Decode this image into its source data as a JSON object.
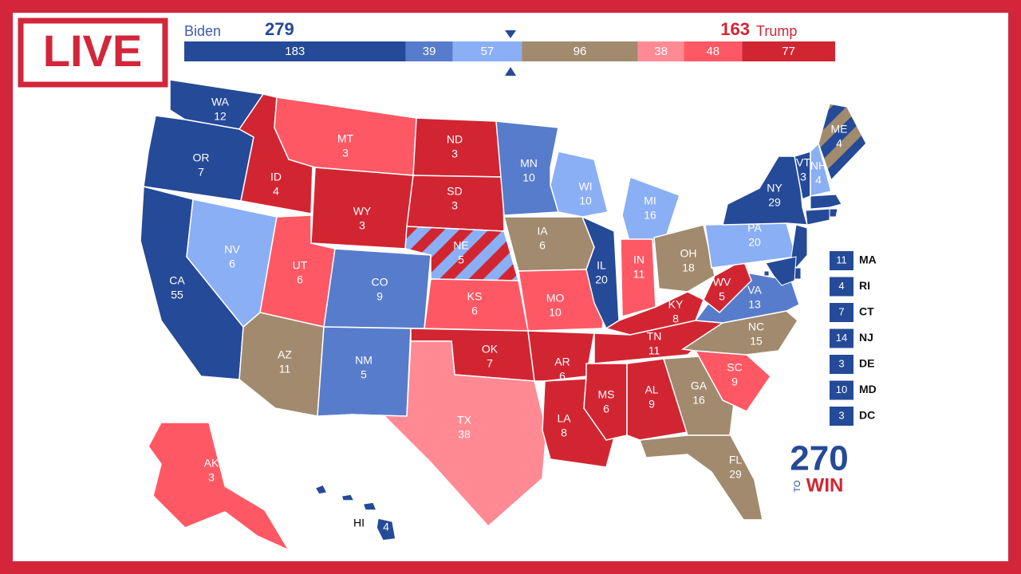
{
  "badge": "LIVE",
  "header": {
    "left_name": "Biden",
    "left_total": 279,
    "right_total": 163,
    "right_name": "Trump"
  },
  "bar": [
    {
      "value": 183,
      "color": "#244a98"
    },
    {
      "value": 39,
      "color": "#577ccc"
    },
    {
      "value": 57,
      "color": "#8aaff5"
    },
    {
      "value": 96,
      "color": "#a18a6e"
    },
    {
      "value": 38,
      "color": "#ff8a94"
    },
    {
      "value": 48,
      "color": "#ff5865"
    },
    {
      "value": 77,
      "color": "#d22532"
    }
  ],
  "states": [
    {
      "abbr": "WA",
      "ev": 12,
      "color": "#244a98"
    },
    {
      "abbr": "OR",
      "ev": 7,
      "color": "#244a98"
    },
    {
      "abbr": "CA",
      "ev": 55,
      "color": "#244a98"
    },
    {
      "abbr": "NV",
      "ev": 6,
      "color": "#8aaff5"
    },
    {
      "abbr": "ID",
      "ev": 4,
      "color": "#d22532"
    },
    {
      "abbr": "MT",
      "ev": 3,
      "color": "#ff5865"
    },
    {
      "abbr": "WY",
      "ev": 3,
      "color": "#d22532"
    },
    {
      "abbr": "UT",
      "ev": 6,
      "color": "#ff5865"
    },
    {
      "abbr": "AZ",
      "ev": 11,
      "color": "#a18a6e"
    },
    {
      "abbr": "CO",
      "ev": 9,
      "color": "#577ccc"
    },
    {
      "abbr": "NM",
      "ev": 5,
      "color": "#577ccc"
    },
    {
      "abbr": "ND",
      "ev": 3,
      "color": "#d22532"
    },
    {
      "abbr": "SD",
      "ev": 3,
      "color": "#d22532"
    },
    {
      "abbr": "NE",
      "ev": 5,
      "color": "#d22532",
      "stripe": "#8aaff5"
    },
    {
      "abbr": "KS",
      "ev": 6,
      "color": "#ff5865"
    },
    {
      "abbr": "OK",
      "ev": 7,
      "color": "#d22532"
    },
    {
      "abbr": "TX",
      "ev": 38,
      "color": "#ff8a94"
    },
    {
      "abbr": "MN",
      "ev": 10,
      "color": "#577ccc"
    },
    {
      "abbr": "IA",
      "ev": 6,
      "color": "#a18a6e"
    },
    {
      "abbr": "MO",
      "ev": 10,
      "color": "#ff5865"
    },
    {
      "abbr": "AR",
      "ev": 6,
      "color": "#d22532"
    },
    {
      "abbr": "LA",
      "ev": 8,
      "color": "#d22532"
    },
    {
      "abbr": "WI",
      "ev": 10,
      "color": "#8aaff5"
    },
    {
      "abbr": "IL",
      "ev": 20,
      "color": "#244a98"
    },
    {
      "abbr": "MI",
      "ev": 16,
      "color": "#8aaff5"
    },
    {
      "abbr": "IN",
      "ev": 11,
      "color": "#ff5865"
    },
    {
      "abbr": "OH",
      "ev": 18,
      "color": "#a18a6e"
    },
    {
      "abbr": "KY",
      "ev": 8,
      "color": "#d22532"
    },
    {
      "abbr": "TN",
      "ev": 11,
      "color": "#d22532"
    },
    {
      "abbr": "MS",
      "ev": 6,
      "color": "#d22532"
    },
    {
      "abbr": "AL",
      "ev": 9,
      "color": "#d22532"
    },
    {
      "abbr": "GA",
      "ev": 16,
      "color": "#a18a6e"
    },
    {
      "abbr": "FL",
      "ev": 29,
      "color": "#a18a6e"
    },
    {
      "abbr": "SC",
      "ev": 9,
      "color": "#ff5865"
    },
    {
      "abbr": "NC",
      "ev": 15,
      "color": "#a18a6e"
    },
    {
      "abbr": "VA",
      "ev": 13,
      "color": "#577ccc"
    },
    {
      "abbr": "WV",
      "ev": 5,
      "color": "#d22532"
    },
    {
      "abbr": "PA",
      "ev": 20,
      "color": "#8aaff5"
    },
    {
      "abbr": "NY",
      "ev": 29,
      "color": "#244a98"
    },
    {
      "abbr": "VT",
      "ev": 3,
      "color": "#244a98"
    },
    {
      "abbr": "NH",
      "ev": 4,
      "color": "#8aaff5"
    },
    {
      "abbr": "ME",
      "ev": 4,
      "color": "#a18a6e",
      "stripe": "#244a98"
    },
    {
      "abbr": "AK",
      "ev": 3,
      "color": "#ff5865"
    },
    {
      "abbr": "HI",
      "ev": 4,
      "color": "#244a98"
    }
  ],
  "small_states": [
    {
      "abbr": "MA",
      "ev": 11,
      "color": "#244a98"
    },
    {
      "abbr": "RI",
      "ev": 4,
      "color": "#244a98"
    },
    {
      "abbr": "CT",
      "ev": 7,
      "color": "#244a98"
    },
    {
      "abbr": "NJ",
      "ev": 14,
      "color": "#244a98"
    },
    {
      "abbr": "DE",
      "ev": 3,
      "color": "#244a98"
    },
    {
      "abbr": "MD",
      "ev": 10,
      "color": "#244a98"
    },
    {
      "abbr": "DC",
      "ev": 3,
      "color": "#244a98"
    }
  ],
  "logo": {
    "number": "270",
    "small": "TO",
    "word": "WIN"
  }
}
